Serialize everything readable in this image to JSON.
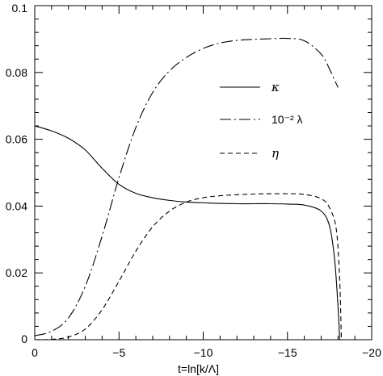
{
  "chart_data": {
    "type": "line",
    "title": "",
    "xlabel": "t=ln[k/Λ]",
    "ylabel": "",
    "xlim": [
      0,
      -20
    ],
    "ylim": [
      0,
      0.1
    ],
    "x_ticks": [
      0,
      -5,
      -10,
      -15,
      -20
    ],
    "x_tick_labels": [
      "0",
      "−5",
      "−10",
      "−15",
      "−20"
    ],
    "y_ticks": [
      0,
      0.02,
      0.04,
      0.06,
      0.08,
      0.1
    ],
    "y_tick_labels": [
      "0",
      "0.02",
      "0.04",
      "0.06",
      "0.08",
      "0.1"
    ],
    "grid": false,
    "legend_position": "upper-right",
    "series": [
      {
        "name": "κ",
        "legend_html": "κ",
        "style": "solid",
        "x": [
          0,
          -1,
          -2,
          -3,
          -4,
          -5,
          -6,
          -7,
          -8,
          -9,
          -10,
          -11,
          -12,
          -13,
          -14,
          -15,
          -16,
          -17,
          -17.5,
          -17.8,
          -18.0,
          -18.1
        ],
        "y": [
          0.064,
          0.0625,
          0.0603,
          0.0568,
          0.0513,
          0.0465,
          0.0438,
          0.0425,
          0.0417,
          0.0412,
          0.041,
          0.0408,
          0.0407,
          0.0407,
          0.0407,
          0.0406,
          0.0403,
          0.0385,
          0.034,
          0.024,
          0.01,
          0.0
        ]
      },
      {
        "name": "10⁻² λ",
        "style": "dash-dot",
        "x": [
          0,
          -1,
          -2,
          -3,
          -4,
          -5,
          -6,
          -7,
          -8,
          -9,
          -10,
          -11,
          -12,
          -13,
          -14,
          -15,
          -16,
          -17,
          -17.5,
          -18.0
        ],
        "y": [
          0.0012,
          0.0025,
          0.0065,
          0.016,
          0.031,
          0.0485,
          0.0635,
          0.074,
          0.0805,
          0.0845,
          0.0872,
          0.0888,
          0.0896,
          0.0899,
          0.0901,
          0.0902,
          0.0895,
          0.0855,
          0.081,
          0.0755
        ]
      },
      {
        "name": "η",
        "style": "dashed",
        "x": [
          0,
          -1,
          -2,
          -3,
          -4,
          -5,
          -6,
          -7,
          -8,
          -9,
          -10,
          -11,
          -12,
          -13,
          -14,
          -15,
          -16,
          -17,
          -17.5,
          -17.9,
          -18.1,
          -18.2
        ],
        "y": [
          0.0,
          0.0001,
          0.0008,
          0.0032,
          0.009,
          0.0175,
          0.0265,
          0.0338,
          0.0385,
          0.0412,
          0.0425,
          0.0431,
          0.0434,
          0.0436,
          0.0437,
          0.0437,
          0.0435,
          0.0422,
          0.0395,
          0.033,
          0.018,
          0.0
        ]
      }
    ]
  }
}
